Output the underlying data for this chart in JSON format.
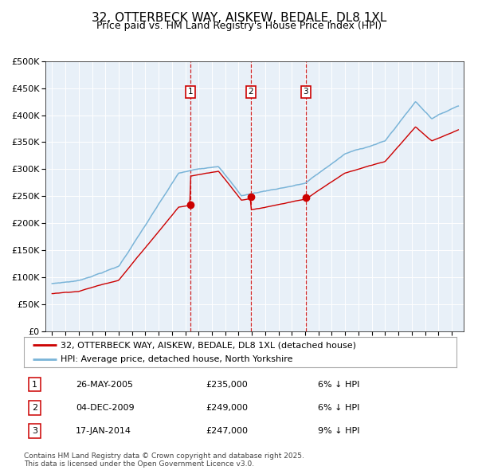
{
  "title": "32, OTTERBECK WAY, AISKEW, BEDALE, DL8 1XL",
  "subtitle": "Price paid vs. HM Land Registry's House Price Index (HPI)",
  "ylim": [
    0,
    500000
  ],
  "yticks": [
    0,
    50000,
    100000,
    150000,
    200000,
    250000,
    300000,
    350000,
    400000,
    450000,
    500000
  ],
  "bg_color": "#e8f0f8",
  "line_color_hpi": "#7ab4d8",
  "line_color_paid": "#cc0000",
  "marker_color": "#cc0000",
  "vline_color": "#cc0000",
  "sale_year_floats": [
    2005.38,
    2009.92,
    2014.04
  ],
  "sale_prices": [
    235000,
    249000,
    247000
  ],
  "sale_labels": [
    "1",
    "2",
    "3"
  ],
  "legend_label_paid": "32, OTTERBECK WAY, AISKEW, BEDALE, DL8 1XL (detached house)",
  "legend_label_hpi": "HPI: Average price, detached house, North Yorkshire",
  "table_data": [
    [
      "1",
      "26-MAY-2005",
      "£235,000",
      "6% ↓ HPI"
    ],
    [
      "2",
      "04-DEC-2009",
      "£249,000",
      "6% ↓ HPI"
    ],
    [
      "3",
      "17-JAN-2014",
      "£247,000",
      "9% ↓ HPI"
    ]
  ],
  "footnote": "Contains HM Land Registry data © Crown copyright and database right 2025.\nThis data is licensed under the Open Government Licence v3.0."
}
